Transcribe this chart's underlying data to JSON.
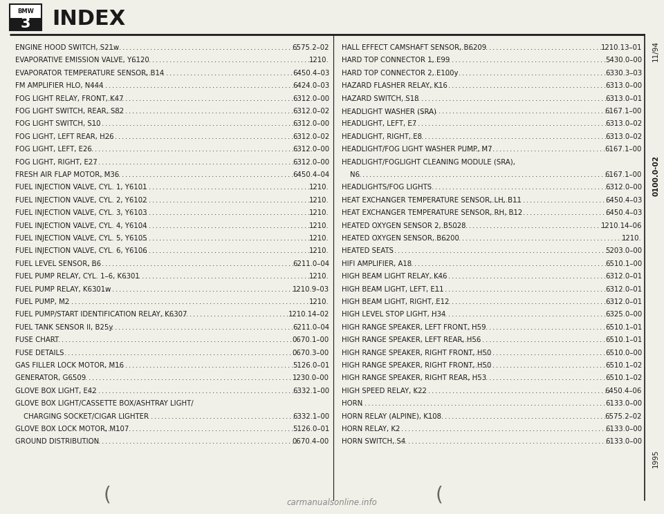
{
  "title": "INDEX",
  "page_ref_top": "11/94",
  "page_ref_middle": "0100.0-02",
  "page_ref_bottom": "1995",
  "left_entries": [
    [
      "ENGINE HOOD SWITCH, S21w",
      "6575.2–02"
    ],
    [
      "EVAPORATIVE EMISSION VALVE, Y6120",
      "1210."
    ],
    [
      "EVAPORATOR TEMPERATURE SENSOR, B14",
      "6450.4–03"
    ],
    [
      "FM AMPLIFIER HLO, N444",
      "6424.0–03"
    ],
    [
      "FOG LIGHT RELAY, FRONT, K47",
      "6312.0–00"
    ],
    [
      "FOG LIGHT SWITCH, REAR, S82",
      "6312.0–02"
    ],
    [
      "FOG LIGHT SWITCH, S10",
      "6312.0–00"
    ],
    [
      "FOG LIGHT, LEFT REAR, H26",
      "6312.0–02"
    ],
    [
      "FOG LIGHT, LEFT, E26",
      "6312.0–00"
    ],
    [
      "FOG LIGHT, RIGHT, E27",
      "6312.0–00"
    ],
    [
      "FRESH AIR FLAP MOTOR, M36",
      "6450.4–04"
    ],
    [
      "FUEL INJECTION VALVE, CYL. 1, Y6101",
      "1210."
    ],
    [
      "FUEL INJECTION VALVE, CYL. 2, Y6102",
      "1210."
    ],
    [
      "FUEL INJECTION VALVE, CYL. 3, Y6103",
      "1210."
    ],
    [
      "FUEL INJECTION VALVE, CYL. 4, Y6104",
      "1210."
    ],
    [
      "FUEL INJECTION VALVE, CYL. 5, Y6105",
      "1210."
    ],
    [
      "FUEL INJECTION VALVE, CYL. 6, Y6106",
      "1210."
    ],
    [
      "FUEL LEVEL SENSOR, B6",
      "6211.0–04"
    ],
    [
      "FUEL PUMP RELAY, CYL. 1–6, K6301",
      "1210."
    ],
    [
      "FUEL PUMP RELAY, K6301w",
      "1210.9–03"
    ],
    [
      "FUEL PUMP, M2",
      "1210."
    ],
    [
      "FUEL PUMP/START IDENTIFICATION RELAY, K6307",
      "1210.14–02"
    ],
    [
      "FUEL TANK SENSOR II, B25y",
      "6211.0–04"
    ],
    [
      "FUSE CHART",
      "0670.1–00"
    ],
    [
      "FUSE DETAILS",
      "0670.3–00"
    ],
    [
      "GAS FILLER LOCK MOTOR, M16",
      "5126.0–01"
    ],
    [
      "GENERATOR, G6509",
      "1230.0–00"
    ],
    [
      "GLOVE BOX LIGHT, E42",
      "6332.1–00"
    ],
    [
      "GLOVE BOX LIGHT/CASSETTE BOX/ASHTRAY LIGHT/",
      ""
    ],
    [
      "  CHARGING SOCKET/CIGAR LIGHTER",
      "6332.1–00"
    ],
    [
      "GLOVE BOX LOCK MOTOR, M107",
      "5126.0–01"
    ],
    [
      "GROUND DISTRIBUTION",
      "0670.4–00"
    ]
  ],
  "right_entries": [
    [
      "HALL EFFECT CAMSHAFT SENSOR, B6209",
      "1210.13–01"
    ],
    [
      "HARD TOP CONNECTOR 1, E99",
      "5430.0–00"
    ],
    [
      "HARD TOP CONNECTOR 2, E100y",
      "6330.3–03"
    ],
    [
      "HAZARD FLASHER RELAY, K16",
      "6313.0–00"
    ],
    [
      "HAZARD SWITCH, S18",
      "6313.0–01"
    ],
    [
      "HEADLIGHT WASHER (SRA)",
      "6167.1–00"
    ],
    [
      "HEADLIGHT, LEFT, E7",
      "6313.0–02"
    ],
    [
      "HEADLIGHT, RIGHT, E8",
      "6313.0–02"
    ],
    [
      "HEADLIGHT/FOG LIGHT WASHER PUMP, M7",
      "6167.1–00"
    ],
    [
      "HEADLIGHT/FOGLIGHT CLEANING MODULE (SRA),",
      ""
    ],
    [
      "  N6",
      "6167.1–00"
    ],
    [
      "HEADLIGHTS/FOG LIGHTS",
      "6312.0–00"
    ],
    [
      "HEAT EXCHANGER TEMPERATURE SENSOR, LH, B11",
      "6450.4–03"
    ],
    [
      "HEAT EXCHANGER TEMPERATURE SENSOR, RH, B12",
      "6450.4–03"
    ],
    [
      "HEATED OXYGEN SENSOR 2, B5028",
      "1210.14–06"
    ],
    [
      "HEATED OXYGEN SENSOR, B6200",
      "1210."
    ],
    [
      "HEATED SEATS",
      "5203.0–00"
    ],
    [
      "HIFI AMPLIFIER, A18",
      "6510.1–00"
    ],
    [
      "HIGH BEAM LIGHT RELAY, K46",
      "6312.0–01"
    ],
    [
      "HIGH BEAM LIGHT, LEFT, E11",
      "6312.0–01"
    ],
    [
      "HIGH BEAM LIGHT, RIGHT, E12",
      "6312.0–01"
    ],
    [
      "HIGH LEVEL STOP LIGHT, H34",
      "6325.0–00"
    ],
    [
      "HIGH RANGE SPEAKER, LEFT FRONT, H59",
      "6510.1–01"
    ],
    [
      "HIGH RANGE SPEAKER, LEFT REAR, H56",
      "6510.1–01"
    ],
    [
      "HIGH RANGE SPEAKER, RIGHT FRONT, H50",
      "6510.0–00"
    ],
    [
      "HIGH RANGE SPEAKER, RIGHT FRONT, H50",
      "6510.1–02"
    ],
    [
      "HIGH RANGE SPEAKER, RIGHT REAR, H53",
      "6510.1–02"
    ],
    [
      "HIGH SPEED RELAY, K22",
      "6450.4–06"
    ],
    [
      "HORN",
      "6133.0–00"
    ],
    [
      "HORN RELAY (ALPINE), K108",
      "6575.2–02"
    ],
    [
      "HORN RELAY, K2",
      "6133.0–00"
    ],
    [
      "HORN SWITCH, S4",
      "6133.0–00"
    ]
  ],
  "bg_color": "#f0efe8",
  "text_color": "#1a1a1a",
  "watermark": "carmanualsonline.info"
}
